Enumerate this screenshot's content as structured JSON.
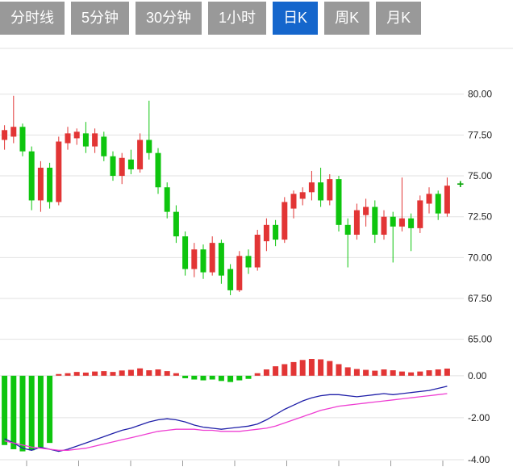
{
  "tabs": [
    {
      "key": "time-line",
      "label": "分时线",
      "active": false
    },
    {
      "key": "5min",
      "label": "5分钟",
      "active": false
    },
    {
      "key": "30min",
      "label": "30分钟",
      "active": false
    },
    {
      "key": "1hour",
      "label": "1小时",
      "active": false
    },
    {
      "key": "daily-k",
      "label": "日K",
      "active": true
    },
    {
      "key": "weekly-k",
      "label": "周K",
      "active": false
    },
    {
      "key": "monthly-k",
      "label": "月K",
      "active": false
    }
  ],
  "colors": {
    "up": "#e23535",
    "down": "#0ec50e",
    "tab_bg": "#999999",
    "tab_active_bg": "#1566cc",
    "tab_text": "#ffffff",
    "grid": "#e2e2e2",
    "axis_text": "#222222",
    "tick": "#999999",
    "price_marker": "#0aa50a"
  },
  "chart_data": {
    "type": "candlestick",
    "title": "",
    "description": "Daily K-line price panel with MACD-style sub-panel; red = up candle, green = down candle",
    "price_panel": {
      "ylim": [
        63.8,
        82.8
      ],
      "yticks": [
        {
          "value": 80.0,
          "label": "80.00"
        },
        {
          "value": 77.5,
          "label": "77.50"
        },
        {
          "value": 75.0,
          "label": "75.00"
        },
        {
          "value": 72.5,
          "label": "72.50"
        },
        {
          "value": 70.0,
          "label": "70.00"
        },
        {
          "value": 67.5,
          "label": "67.50"
        },
        {
          "value": 65.0,
          "label": "65.00"
        }
      ],
      "candle_columns": [
        "open",
        "high",
        "low",
        "close"
      ],
      "candles": [
        [
          77.2,
          78.1,
          76.6,
          77.8
        ],
        [
          77.4,
          79.9,
          77.0,
          78.0
        ],
        [
          78.0,
          78.2,
          76.2,
          76.5
        ],
        [
          76.5,
          76.8,
          72.9,
          73.5
        ],
        [
          73.5,
          75.9,
          72.8,
          75.5
        ],
        [
          75.5,
          75.8,
          73.0,
          73.4
        ],
        [
          73.4,
          77.4,
          73.2,
          77.1
        ],
        [
          77.0,
          78.0,
          76.6,
          77.6
        ],
        [
          77.3,
          77.9,
          76.9,
          77.7
        ],
        [
          77.6,
          78.3,
          76.4,
          76.8
        ],
        [
          76.8,
          77.9,
          76.4,
          77.6
        ],
        [
          77.4,
          77.7,
          75.9,
          76.2
        ],
        [
          76.2,
          76.5,
          74.7,
          75.0
        ],
        [
          75.0,
          76.4,
          74.5,
          76.1
        ],
        [
          76.0,
          76.6,
          75.1,
          75.4
        ],
        [
          75.4,
          77.6,
          75.2,
          77.2
        ],
        [
          77.2,
          79.6,
          76.0,
          76.4
        ],
        [
          76.4,
          76.7,
          73.9,
          74.3
        ],
        [
          74.3,
          74.6,
          72.4,
          72.8
        ],
        [
          72.8,
          73.2,
          70.9,
          71.3
        ],
        [
          71.3,
          71.6,
          68.9,
          69.3
        ],
        [
          69.3,
          70.9,
          68.8,
          70.5
        ],
        [
          70.5,
          70.8,
          68.7,
          69.1
        ],
        [
          69.1,
          71.3,
          68.9,
          70.9
        ],
        [
          70.9,
          71.1,
          68.4,
          68.9
        ],
        [
          69.3,
          69.6,
          67.7,
          68.0
        ],
        [
          68.0,
          70.4,
          67.9,
          70.1
        ],
        [
          70.1,
          70.5,
          69.0,
          69.4
        ],
        [
          69.4,
          71.7,
          69.2,
          71.4
        ],
        [
          71.0,
          72.4,
          70.4,
          72.0
        ],
        [
          72.0,
          72.3,
          70.7,
          71.1
        ],
        [
          71.1,
          73.7,
          70.9,
          73.4
        ],
        [
          73.0,
          74.1,
          72.4,
          73.9
        ],
        [
          73.6,
          74.3,
          73.2,
          74.0
        ],
        [
          74.0,
          75.3,
          73.5,
          74.6
        ],
        [
          74.6,
          75.5,
          73.1,
          73.5
        ],
        [
          73.5,
          75.1,
          73.2,
          74.8
        ],
        [
          74.8,
          75.0,
          71.6,
          72.0
        ],
        [
          72.0,
          72.4,
          69.4,
          71.4
        ],
        [
          71.4,
          73.3,
          71.1,
          72.9
        ],
        [
          72.6,
          73.6,
          71.9,
          73.1
        ],
        [
          73.1,
          73.5,
          70.9,
          71.4
        ],
        [
          71.4,
          72.9,
          71.1,
          72.5
        ],
        [
          72.5,
          72.8,
          69.7,
          71.9
        ],
        [
          71.9,
          74.9,
          71.6,
          72.4
        ],
        [
          72.4,
          72.7,
          70.4,
          71.8
        ],
        [
          71.8,
          73.8,
          71.5,
          73.5
        ],
        [
          73.3,
          74.3,
          72.7,
          73.9
        ],
        [
          73.9,
          74.1,
          72.3,
          72.7
        ],
        [
          72.7,
          74.9,
          72.5,
          74.4
        ]
      ],
      "last_price_marker": {
        "price": 74.5,
        "symbol": "+"
      }
    },
    "macd_panel": {
      "ylim": [
        -4.0,
        0.8
      ],
      "yticks": [
        {
          "value": 0.0,
          "label": "0.00"
        },
        {
          "value": -2.0,
          "label": "-2.00"
        },
        {
          "value": -4.0,
          "label": "-4.00"
        }
      ],
      "histogram": [
        -3.3,
        -3.5,
        -3.6,
        -3.55,
        -3.4,
        -3.2,
        0.08,
        0.12,
        0.18,
        0.15,
        0.2,
        0.22,
        0.18,
        0.25,
        0.28,
        0.35,
        0.26,
        0.3,
        0.22,
        0.12,
        -0.12,
        -0.18,
        -0.22,
        -0.18,
        -0.25,
        -0.3,
        -0.22,
        -0.15,
        0.12,
        0.3,
        0.45,
        0.55,
        0.65,
        0.75,
        0.8,
        0.78,
        0.7,
        0.55,
        0.4,
        0.32,
        0.28,
        0.24,
        0.3,
        0.26,
        0.2,
        0.16,
        0.2,
        0.26,
        0.3,
        0.34
      ],
      "series": [
        {
          "name": "fast-line",
          "color": "#1f1fa8",
          "values": [
            -3.0,
            -3.2,
            -3.45,
            -3.55,
            -3.4,
            -3.5,
            -3.6,
            -3.5,
            -3.35,
            -3.2,
            -3.05,
            -2.9,
            -2.75,
            -2.6,
            -2.5,
            -2.35,
            -2.2,
            -2.1,
            -2.05,
            -2.1,
            -2.2,
            -2.35,
            -2.45,
            -2.5,
            -2.55,
            -2.5,
            -2.45,
            -2.4,
            -2.3,
            -2.1,
            -1.85,
            -1.6,
            -1.4,
            -1.2,
            -1.05,
            -0.95,
            -0.9,
            -0.9,
            -0.95,
            -1.0,
            -0.95,
            -0.9,
            -0.85,
            -0.9,
            -0.85,
            -0.8,
            -0.75,
            -0.7,
            -0.6,
            -0.5
          ]
        },
        {
          "name": "slow-line",
          "color": "#ee3ed2",
          "values": [
            -3.1,
            -3.2,
            -3.3,
            -3.4,
            -3.45,
            -3.5,
            -3.55,
            -3.55,
            -3.5,
            -3.45,
            -3.35,
            -3.25,
            -3.15,
            -3.05,
            -2.95,
            -2.85,
            -2.75,
            -2.65,
            -2.6,
            -2.55,
            -2.55,
            -2.55,
            -2.6,
            -2.6,
            -2.65,
            -2.65,
            -2.65,
            -2.6,
            -2.55,
            -2.5,
            -2.4,
            -2.25,
            -2.1,
            -1.95,
            -1.8,
            -1.65,
            -1.55,
            -1.45,
            -1.4,
            -1.35,
            -1.3,
            -1.25,
            -1.2,
            -1.15,
            -1.1,
            -1.05,
            -1.0,
            -0.95,
            -0.9,
            -0.85
          ]
        }
      ]
    }
  }
}
